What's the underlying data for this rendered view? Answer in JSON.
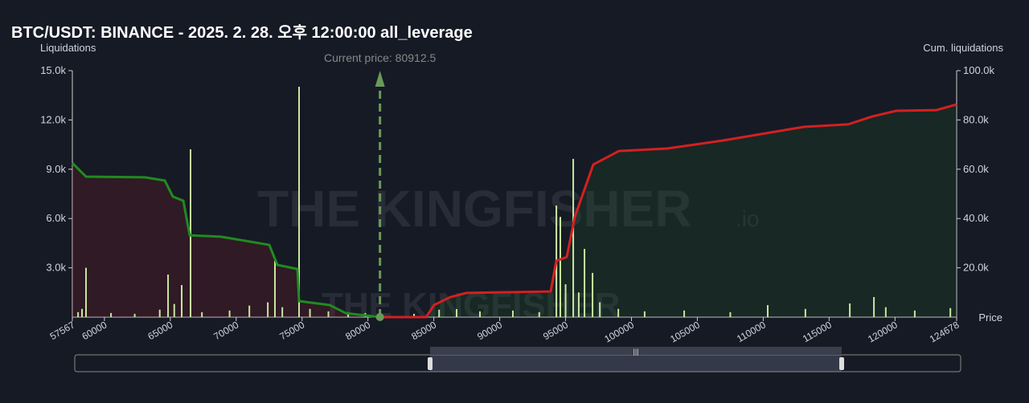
{
  "chart_data": {
    "type": "bar",
    "title": "BTC/USDT: BINANCE - 2025. 2. 28. 오후 12:00:00 all_leverage",
    "y_label": "Liquidations",
    "y2_label": "Cum. liquidations",
    "x_label": "Price",
    "annotation": {
      "text": "Current price: 80912.5",
      "x": 80912.5,
      "color": "#6a9a5a"
    },
    "watermark": "THE KINGFISHER",
    "watermark_suffix": ".io",
    "xlim": [
      57567,
      124678
    ],
    "xticks": [
      57567,
      60000,
      65000,
      70000,
      75000,
      80000,
      85000,
      90000,
      95000,
      100000,
      105000,
      110000,
      115000,
      120000,
      124678
    ],
    "ylim": [
      0,
      15000
    ],
    "yticks": [
      {
        "value": 3000,
        "label": "3.0k"
      },
      {
        "value": 6000,
        "label": "6.0k"
      },
      {
        "value": 9000,
        "label": "9.0k"
      },
      {
        "value": 12000,
        "label": "12.0k"
      },
      {
        "value": 15000,
        "label": "15.0k"
      }
    ],
    "y2lim": [
      0,
      100000
    ],
    "y2ticks": [
      {
        "value": 20000,
        "label": "20.0k"
      },
      {
        "value": 40000,
        "label": "40.0k"
      },
      {
        "value": 60000,
        "label": "60.0k"
      },
      {
        "value": 80000,
        "label": "80.0k"
      },
      {
        "value": 100000,
        "label": "100.0k"
      }
    ],
    "series": [
      {
        "type": "bar",
        "color": "#c9e6a0",
        "x": [
          58000,
          58300,
          58604,
          60500,
          62300,
          64200,
          64830,
          65300,
          65866,
          66536,
          67400,
          69500,
          71000,
          72400,
          72942,
          73500,
          74772,
          75600,
          77000,
          78500,
          79800,
          83500,
          85400,
          86730,
          88500,
          91000,
          93000,
          94300,
          94600,
          95000,
          95580,
          96000,
          96435,
          97045,
          97600,
          99000,
          101000,
          104000,
          107500,
          110340,
          113200,
          116570,
          118400,
          119300,
          121500,
          124200
        ],
        "values": [
          300,
          500,
          3000,
          250,
          200,
          450,
          2590,
          800,
          1950,
          10210,
          300,
          400,
          700,
          900,
          3420,
          600,
          14020,
          500,
          350,
          300,
          250,
          200,
          450,
          490,
          350,
          400,
          300,
          6790,
          6100,
          2000,
          9630,
          1500,
          4150,
          2690,
          900,
          500,
          350,
          400,
          300,
          730,
          500,
          830,
          1220,
          600,
          400,
          550
        ]
      },
      {
        "type": "line",
        "axis": "y2",
        "color": "#1f8c1f",
        "fill": "rgba(120,30,40,0.28)",
        "x": [
          57567,
          58604,
          63058,
          64583,
          65194,
          65987,
          66475,
          68855,
          72515,
          73125,
          74650,
          74772,
          77091,
          78311,
          80912.5
        ],
        "values": [
          62500,
          57000,
          56700,
          55400,
          48900,
          47200,
          33200,
          32600,
          29300,
          21200,
          19500,
          6500,
          4900,
          1600,
          0
        ]
      },
      {
        "type": "line",
        "axis": "y2",
        "color": "#d42020",
        "fill": "rgba(30,90,40,0.22)",
        "x": [
          80912.5,
          84412,
          85022,
          86242,
          87463,
          93869,
          94296,
          95089,
          95700,
          97103,
          99055,
          102716,
          106987,
          113088,
          116444,
          118274,
          120105,
          123155,
          124678
        ],
        "values": [
          0,
          0,
          4900,
          8100,
          9800,
          10400,
          22800,
          24400,
          40700,
          61900,
          67400,
          68400,
          71700,
          77200,
          78200,
          81400,
          83700,
          84000,
          86300
        ]
      }
    ]
  }
}
